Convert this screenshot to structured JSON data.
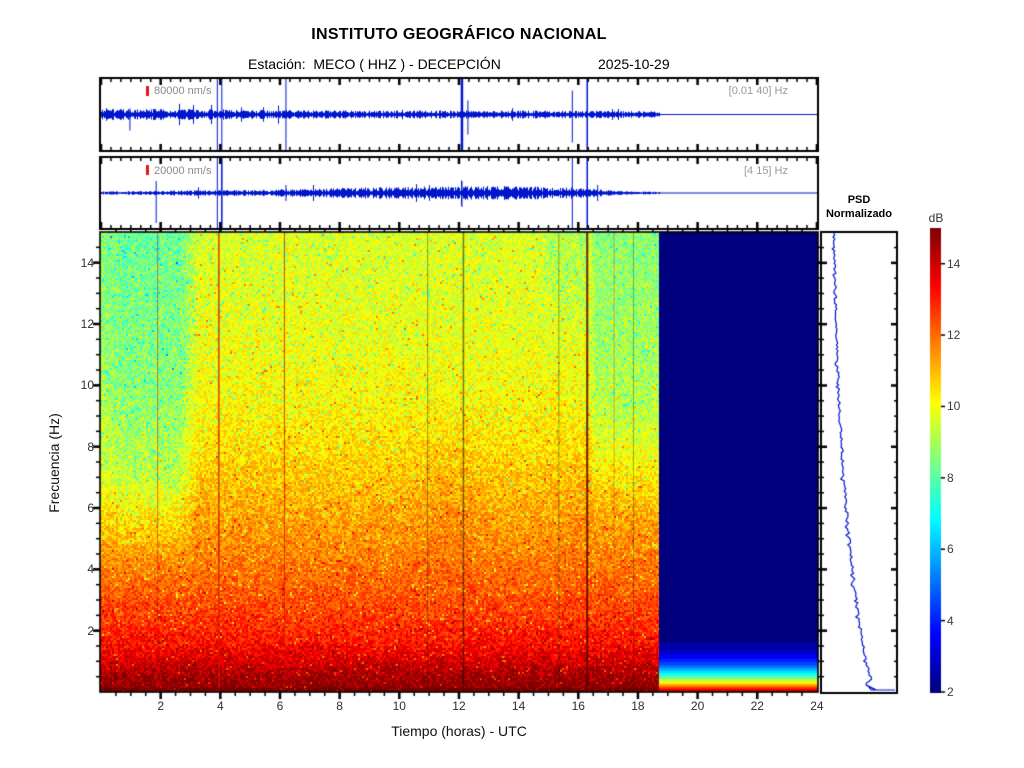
{
  "header": {
    "title": "INSTITUTO GEOGRÁFICO NACIONAL",
    "station_label": "Estación:  MECO ( HHZ ) - DECEPCIÓN",
    "date": "2025-10-29"
  },
  "panels": {
    "seismogram_broadband": {
      "scale_label": "80000 nm/s",
      "band_label": "[0.01 40] Hz"
    },
    "seismogram_filtered": {
      "scale_label": "20000 nm/s",
      "band_label": "[4 15] Hz"
    },
    "spectrogram": {
      "xlabel": "Tiempo (horas) - UTC",
      "ylabel": "Frecuencia (Hz)",
      "x_ticks": [
        2,
        4,
        6,
        8,
        10,
        12,
        14,
        16,
        18,
        20,
        22,
        24
      ],
      "y_ticks": [
        2,
        4,
        6,
        8,
        10,
        12,
        14
      ]
    },
    "psd": {
      "title_line1": "PSD",
      "title_line2": "Normalizado"
    },
    "colorbar": {
      "label": "dB",
      "ticks": [
        2,
        4,
        6,
        8,
        10,
        12,
        14
      ]
    }
  },
  "colors": {
    "trace_blue": "#0016cc",
    "scale_bar_red": "#e01818",
    "nodata_navy": "#000083",
    "frame_black": "#000000"
  },
  "chart_data": [
    {
      "type": "line",
      "name": "seismogram-broadband",
      "scale_label": "80000 nm/s",
      "filter_band": "[0.01 40] Hz",
      "x_unit": "hours UTC",
      "x_range": [
        0,
        24
      ],
      "data_end_hour": 18.7,
      "event_spike_hours": [
        1.0,
        3.9,
        4.05,
        6.2,
        12.1,
        12.3,
        15.8,
        16.3
      ],
      "note": "continuous broadband seismic trace, flat baseline after data end"
    },
    {
      "type": "line",
      "name": "seismogram-filtered",
      "scale_label": "20000 nm/s",
      "filter_band": "[4 15] Hz",
      "x_unit": "hours UTC",
      "x_range": [
        0,
        24
      ],
      "data_end_hour": 18.7,
      "event_spike_hours": [
        1.85,
        3.9,
        4.05,
        6.2,
        12.1,
        15.8,
        16.3
      ],
      "envelope_peak_hours": [
        10,
        15
      ],
      "note": "band-passed trace, amplitude grows mid-day then decays"
    },
    {
      "type": "heatmap",
      "name": "spectrogram",
      "xlabel": "Tiempo (horas) - UTC",
      "ylabel": "Frecuencia (Hz)",
      "x_range": [
        0,
        24
      ],
      "y_range": [
        0,
        15
      ],
      "value_range_db": [
        2,
        15
      ],
      "colormap": "jet",
      "data_end_hour": 18.72,
      "background_db_by_freq": [
        [
          0.3,
          14.8
        ],
        [
          1,
          13.9
        ],
        [
          2,
          12.8
        ],
        [
          3,
          12.3
        ],
        [
          5,
          11.5
        ],
        [
          7,
          10.8
        ],
        [
          9,
          10.3
        ],
        [
          11,
          10.0
        ],
        [
          13,
          9.8
        ],
        [
          15,
          9.6
        ]
      ],
      "quiet_green_high_freq_hours": [
        0,
        3.2
      ],
      "quiet_green_high_freq_hours_late": [
        16.35,
        18.72
      ],
      "red_line_hours": [
        1.9,
        3.95,
        6.15,
        17.2
      ],
      "dark_line_hours": [
        10.95,
        12.15,
        15.35,
        17.85
      ],
      "maroon_line_hour": 16.3,
      "no_data_fill": "navy with low-frequency jet-colored bands near 0 Hz"
    },
    {
      "type": "line",
      "name": "psd-normalized",
      "title": "PSD Normalizado",
      "orientation": "vertical, frequency on y (0-15 Hz), normalized power on x",
      "points_freq_vs_norm": [
        [
          15,
          0.17
        ],
        [
          14,
          0.18
        ],
        [
          13,
          0.19
        ],
        [
          12,
          0.2
        ],
        [
          11,
          0.215
        ],
        [
          10,
          0.23
        ],
        [
          9,
          0.25
        ],
        [
          8,
          0.275
        ],
        [
          7,
          0.3
        ],
        [
          6,
          0.335
        ],
        [
          5,
          0.37
        ],
        [
          4,
          0.415
        ],
        [
          3.5,
          0.44
        ],
        [
          3,
          0.47
        ],
        [
          2.6,
          0.49
        ],
        [
          2.2,
          0.515
        ],
        [
          1.9,
          0.53
        ],
        [
          1.6,
          0.55
        ],
        [
          1.3,
          0.57
        ],
        [
          1.1,
          0.585
        ],
        [
          0.9,
          0.605
        ],
        [
          0.75,
          0.625
        ],
        [
          0.6,
          0.64
        ],
        [
          0.5,
          0.655
        ],
        [
          0.42,
          0.66
        ],
        [
          0.35,
          0.645
        ],
        [
          0.28,
          0.62
        ],
        [
          0.2,
          0.63
        ],
        [
          0.14,
          0.66
        ],
        [
          0.1,
          0.68
        ]
      ],
      "bottom_segment": "horizontal line along 0 Hz to right edge"
    },
    {
      "type": "colorbar",
      "label": "dB",
      "range_db": [
        2,
        15
      ],
      "ticks": [
        2,
        4,
        6,
        8,
        10,
        12,
        14
      ],
      "colormap": "jet"
    }
  ]
}
